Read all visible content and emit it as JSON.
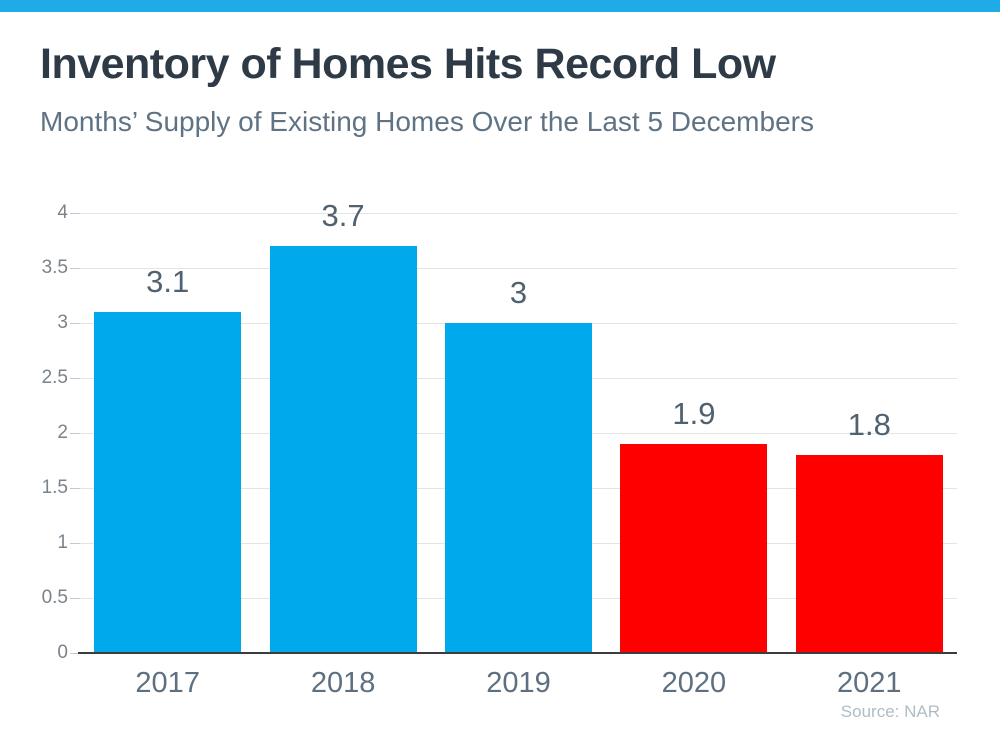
{
  "header": {
    "title": "Inventory of Homes Hits Record Low",
    "subtitle": "Months’ Supply of Existing Homes Over the Last 5 Decembers"
  },
  "source_note": "Source: NAR",
  "accent": {
    "stripe_color": "#1FAAE8"
  },
  "chart_data": {
    "type": "bar",
    "title": "Inventory of Homes Hits Record Low",
    "subtitle": "Months’ Supply of Existing Homes Over the Last 5 Decembers",
    "categories": [
      "2017",
      "2018",
      "2019",
      "2020",
      "2021"
    ],
    "values": [
      3.1,
      3.7,
      3,
      1.9,
      1.8
    ],
    "data_labels": [
      "3.1",
      "3.7",
      "3",
      "1.9",
      "1.8"
    ],
    "bar_colors": [
      "#00A9EC",
      "#00A9EC",
      "#00A9EC",
      "#FE0000",
      "#FE0000"
    ],
    "xlabel": "",
    "ylabel": "",
    "ylim": [
      0,
      4
    ],
    "yticks": [
      0,
      0.5,
      1,
      1.5,
      2,
      2.5,
      3,
      3.5,
      4
    ],
    "ytick_labels": [
      "0",
      "0.5",
      "1",
      "1.5",
      "2",
      "2.5",
      "3",
      "3.5",
      "4"
    ],
    "grid": true,
    "legend": false,
    "source": "Source: NAR",
    "colors": {
      "blue_bar": "#00A9EC",
      "red_bar": "#FE0000",
      "gridline": "#E4E4E4",
      "baseline": "#3C3C3C",
      "data_label": "#50616F",
      "category_label": "#5E7080",
      "ytick_label": "#79838C",
      "title": "#2E3B47",
      "subtitle": "#5F7385",
      "source": "#AEBDC5"
    }
  }
}
